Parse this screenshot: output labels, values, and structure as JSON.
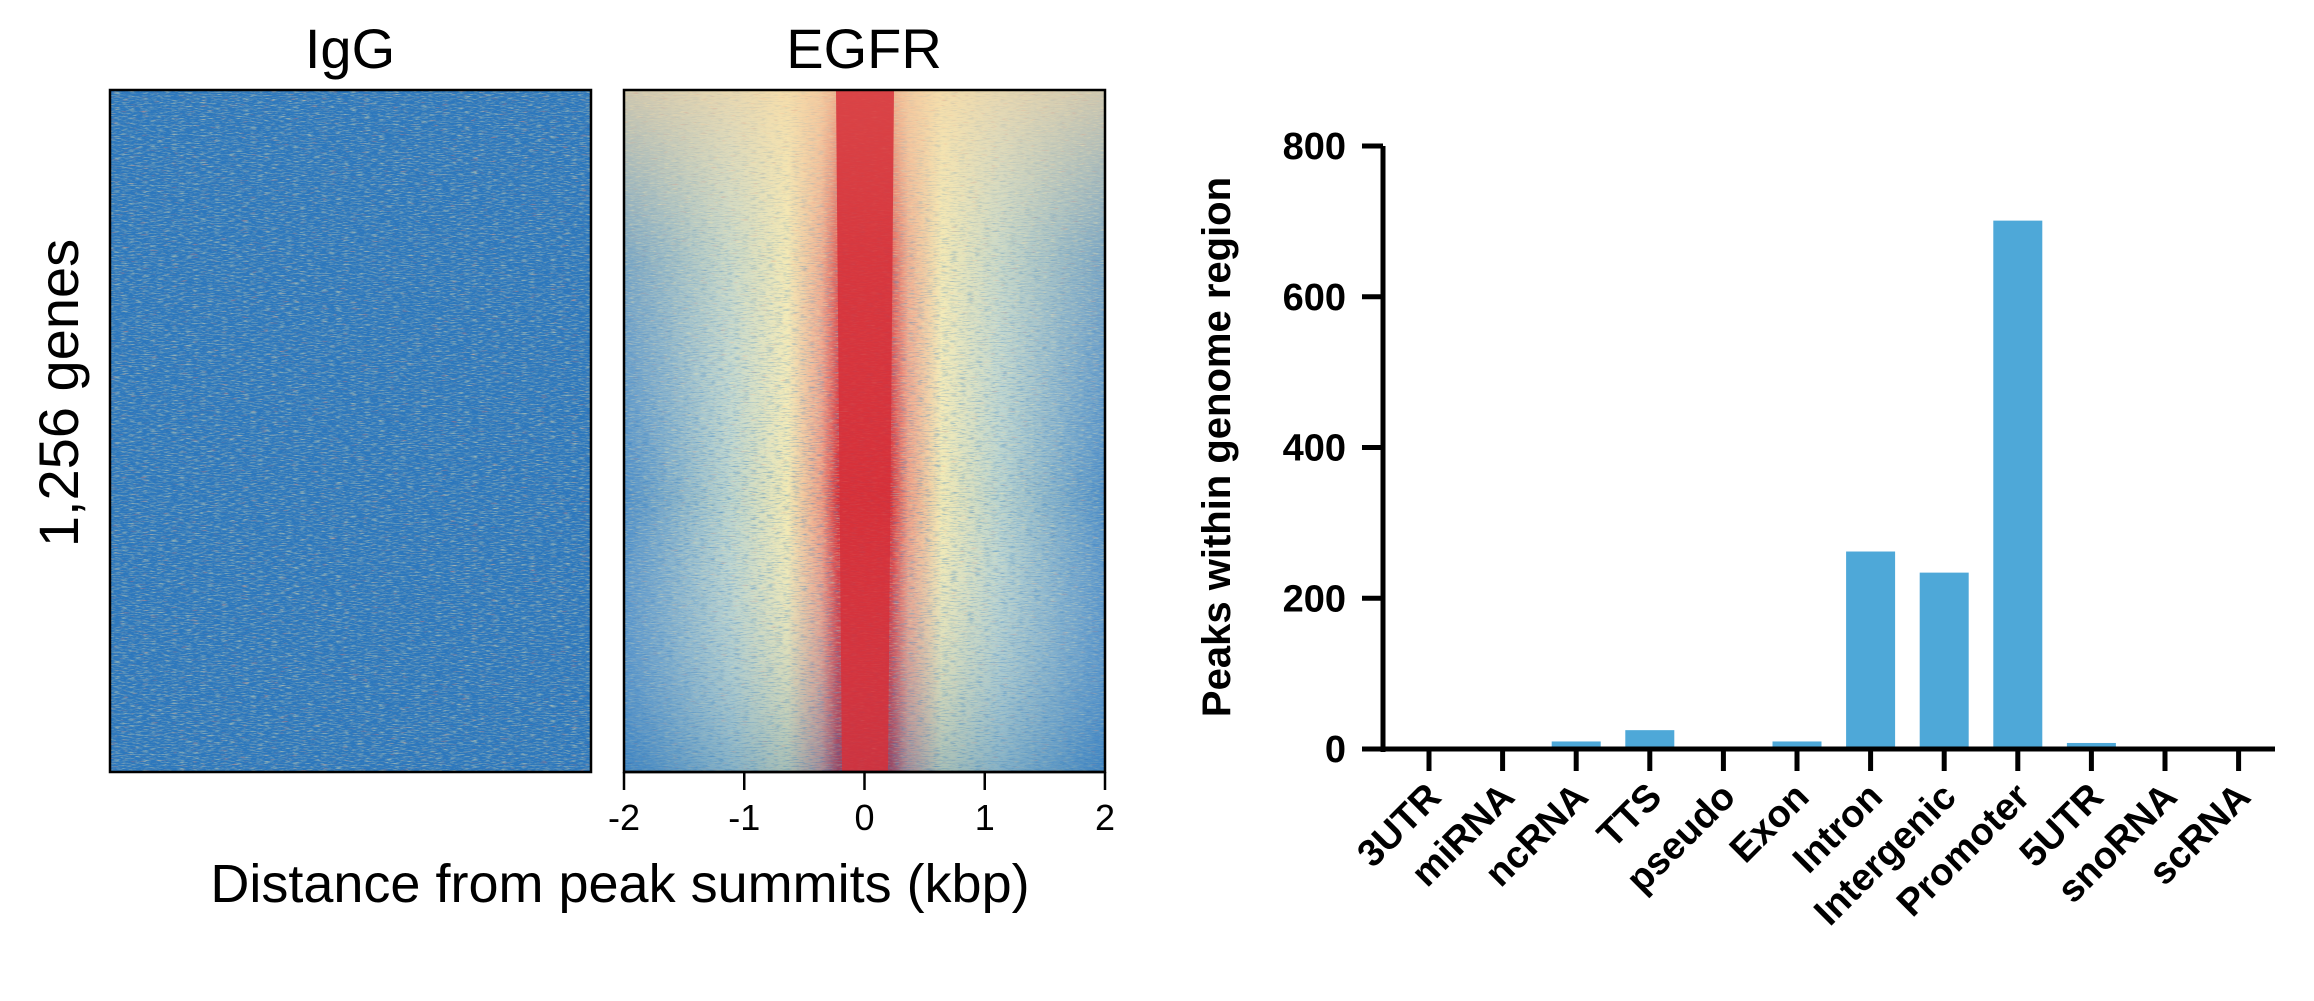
{
  "chart_data": [
    {
      "type": "heatmap",
      "panels": [
        "IgG",
        "EGFR"
      ],
      "row_label": "1,256 genes",
      "xlabel": "Distance from peak summits (kbp)",
      "x_ticks": [
        "-2",
        "-1",
        "0",
        "1",
        "2"
      ],
      "xlim": [
        -2,
        2
      ],
      "colors": {
        "low": "#1f6fb8",
        "mid": "#f4ecb0",
        "high": "#d7303a"
      }
    },
    {
      "type": "bar",
      "categories": [
        "3UTR",
        "miRNA",
        "ncRNA",
        "TTS",
        "pseudo",
        "Exon",
        "Intron",
        "Intergenic",
        "Promoter",
        "5UTR",
        "snoRNA",
        "scRNA"
      ],
      "values": [
        0,
        0,
        10,
        25,
        0,
        10,
        262,
        234,
        701,
        8,
        0,
        0
      ],
      "ylabel": "Peaks within genome region",
      "y_ticks": [
        "0",
        "200",
        "400",
        "600",
        "800"
      ],
      "ylim": [
        0,
        800
      ],
      "bar_color": "#4ea8d8"
    }
  ]
}
